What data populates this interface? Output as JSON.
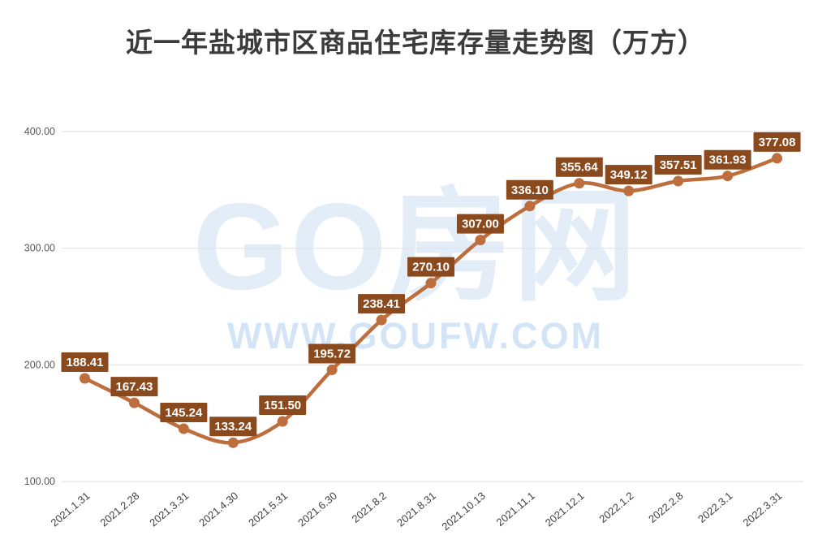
{
  "title": "近一年盐城市区商品住宅库存量走势图（万方）",
  "watermark": {
    "brand": "GO房网",
    "url": "WWW.GOUFW.COM"
  },
  "chart_data": {
    "type": "line",
    "title": "近一年盐城市区商品住宅库存量走势图（万方）",
    "xlabel": "",
    "ylabel": "",
    "categories": [
      "2021.1.31",
      "2021.2.28",
      "2021.3.31",
      "2021.4.30",
      "2021.5.31",
      "2021.6.30",
      "2021.8.2",
      "2021.8.31",
      "2021.10.13",
      "2021.11.1",
      "2021.12.1",
      "2022.1.2",
      "2022.2.8",
      "2022.3.1",
      "2022.3.31"
    ],
    "values": [
      188.41,
      167.43,
      145.24,
      133.24,
      151.5,
      195.72,
      238.41,
      270.1,
      307.0,
      336.1,
      355.64,
      349.12,
      357.51,
      361.93,
      377.08
    ],
    "labels": [
      "188.41",
      "167.43",
      "145.24",
      "133.24",
      "151.50",
      "195.72",
      "238.41",
      "270.10",
      "307.00",
      "336.10",
      "355.64",
      "349.12",
      "357.51",
      "361.93",
      "377.08"
    ],
    "ylim": [
      100,
      400
    ],
    "yticks": [
      100,
      200,
      300,
      400
    ],
    "ytick_labels": [
      "100.00",
      "200.00",
      "300.00",
      "400.00"
    ],
    "grid": true,
    "legend_position": "none",
    "smooth_line": true,
    "colors": {
      "line": "#bd6e3c",
      "marker": "#bd6e3c",
      "label_bg": "#8a4a1d",
      "label_text": "#ffffff",
      "grid": "#e4e4e4",
      "axis_text": "#595959",
      "x_axis_text": "#3f3f3f",
      "title_text": "#3b3b3b",
      "watermark": "#e3edf8"
    }
  }
}
